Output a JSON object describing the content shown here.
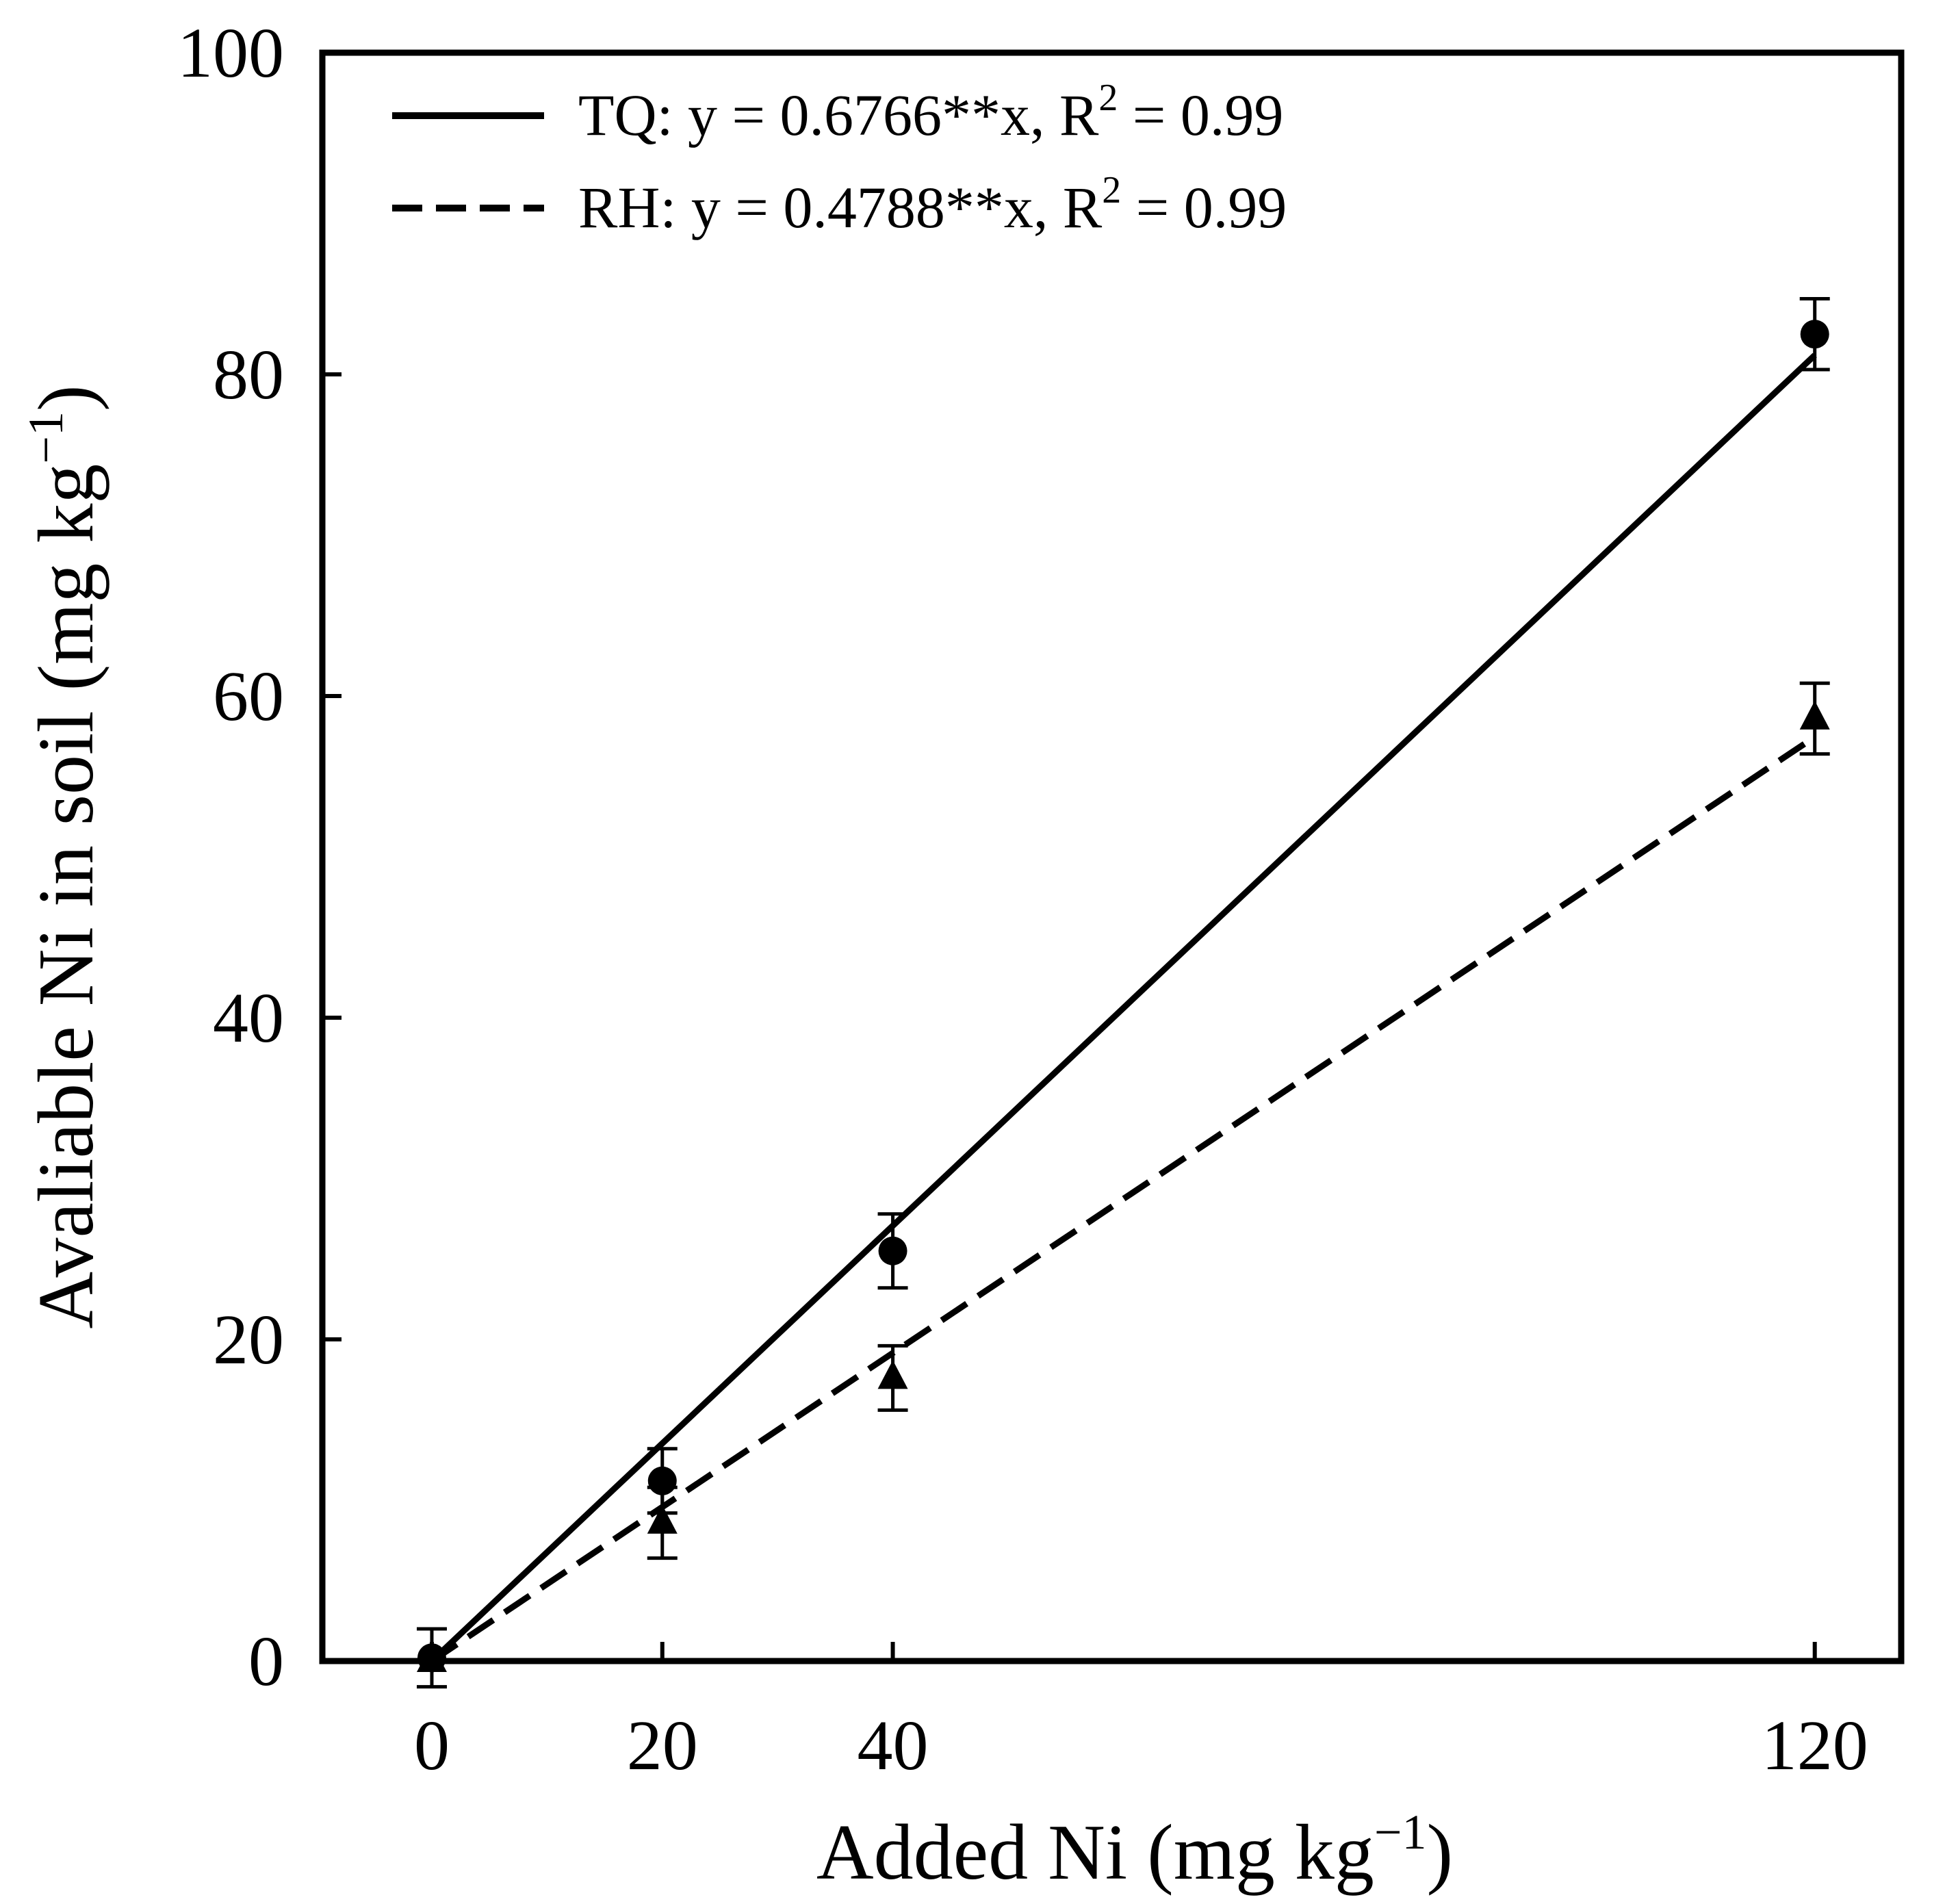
{
  "chart_data": {
    "type": "scatter",
    "xlabel": "Added Ni (mg kg",
    "xlabel_sup": "−1",
    "xlabel_close": ")",
    "ylabel": "Avaliable Ni in soil (mg kg",
    "ylabel_sup": "−1",
    "ylabel_close": ")",
    "y_ticks": [
      "0",
      "20",
      "40",
      "60",
      "80",
      "100"
    ],
    "y_tick_values": [
      0,
      20,
      40,
      60,
      80,
      100
    ],
    "x_ticks": [
      "0",
      "20",
      "40",
      "120"
    ],
    "x_tick_values": [
      0,
      20,
      40,
      120
    ],
    "xlim": [
      -9.5,
      127.5
    ],
    "ylim": [
      0,
      100
    ],
    "grid": false,
    "legend_position": "top-left",
    "series": [
      {
        "name": "TQ",
        "marker": "circle",
        "line": "solid",
        "legend_main": "TQ: y = 0.6766**x, R",
        "legend_sup": "2",
        "legend_tail": " = 0.99",
        "slope": 0.6766,
        "points": [
          {
            "x": 0,
            "y": 0.2,
            "err": 1.8
          },
          {
            "x": 20,
            "y": 11.2,
            "err": 2.0
          },
          {
            "x": 40,
            "y": 25.5,
            "err": 2.3
          },
          {
            "x": 120,
            "y": 82.5,
            "err": 2.2
          }
        ]
      },
      {
        "name": "RH",
        "marker": "triangle",
        "line": "dashed",
        "legend_main": "RH: y = 0.4788**x, R",
        "legend_sup": "2",
        "legend_tail": " = 0.99",
        "slope": 0.4788,
        "points": [
          {
            "x": 0,
            "y": 0,
            "err": 0
          },
          {
            "x": 20,
            "y": 8.6,
            "err": 2.2
          },
          {
            "x": 40,
            "y": 17.6,
            "err": 2.0
          },
          {
            "x": 120,
            "y": 58.6,
            "err": 2.2
          }
        ]
      }
    ]
  }
}
